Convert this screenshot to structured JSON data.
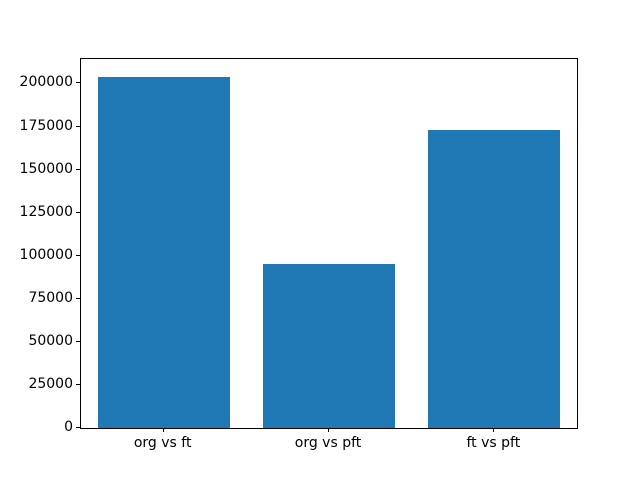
{
  "chart_data": {
    "type": "bar",
    "categories": [
      "org vs ft",
      "org vs pft",
      "ft vs pft"
    ],
    "values": [
      204000,
      95000,
      173000
    ],
    "title": "",
    "xlabel": "",
    "ylabel": "",
    "ylim": [
      0,
      214200
    ],
    "yticks": [
      0,
      25000,
      50000,
      75000,
      100000,
      125000,
      150000,
      175000,
      200000
    ],
    "ytick_labels": [
      "0",
      "25000",
      "50000",
      "75000",
      "100000",
      "125000",
      "150000",
      "175000",
      "200000"
    ],
    "bar_color": "#1f77b4",
    "spine_color": "#000000",
    "background_color": "#ffffff",
    "grid": false,
    "legend": null,
    "bar_width_fraction": 0.8
  }
}
